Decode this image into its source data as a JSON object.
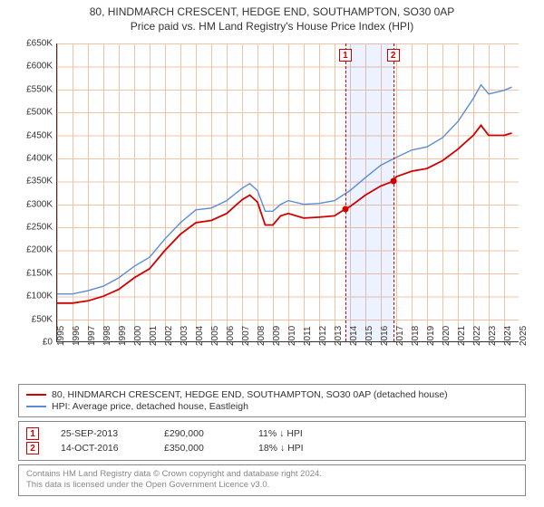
{
  "titles": {
    "line1": "80, HINDMARCH CRESCENT, HEDGE END, SOUTHAMPTON, SO30 0AP",
    "line2": "Price paid vs. HM Land Registry's House Price Index (HPI)"
  },
  "chart": {
    "type": "line",
    "x_domain": [
      1995,
      2025
    ],
    "y_domain": [
      0,
      650000
    ],
    "y_ticks": [
      0,
      50000,
      100000,
      150000,
      200000,
      250000,
      300000,
      350000,
      400000,
      450000,
      500000,
      550000,
      600000,
      650000
    ],
    "y_tick_labels": [
      "£0",
      "£50K",
      "£100K",
      "£150K",
      "£200K",
      "£250K",
      "£300K",
      "£350K",
      "£400K",
      "£450K",
      "£500K",
      "£550K",
      "£600K",
      "£650K"
    ],
    "x_ticks": [
      1995,
      1996,
      1997,
      1998,
      1999,
      2000,
      2001,
      2002,
      2003,
      2004,
      2005,
      2006,
      2007,
      2008,
      2009,
      2010,
      2011,
      2012,
      2013,
      2014,
      2015,
      2016,
      2017,
      2018,
      2019,
      2020,
      2021,
      2022,
      2023,
      2024,
      2025
    ],
    "grid_color": "#f0c2a8",
    "background_color": "#ffffff",
    "highlight_band": {
      "x_start": 2013.7,
      "x_end": 2016.8,
      "color": "rgba(100,150,255,0.12)"
    },
    "series": [
      {
        "name": "price_paid",
        "label": "80, HINDMARCH CRESCENT, HEDGE END, SOUTHAMPTON, SO30 0AP (detached house)",
        "color": "#d00000",
        "width": 1.8,
        "points": [
          [
            1995,
            85000
          ],
          [
            1996,
            85000
          ],
          [
            1997,
            90000
          ],
          [
            1998,
            100000
          ],
          [
            1999,
            115000
          ],
          [
            2000,
            140000
          ],
          [
            2001,
            160000
          ],
          [
            2002,
            200000
          ],
          [
            2003,
            235000
          ],
          [
            2004,
            260000
          ],
          [
            2005,
            265000
          ],
          [
            2006,
            280000
          ],
          [
            2007,
            310000
          ],
          [
            2007.5,
            320000
          ],
          [
            2008,
            305000
          ],
          [
            2008.5,
            255000
          ],
          [
            2009,
            255000
          ],
          [
            2009.5,
            275000
          ],
          [
            2010,
            280000
          ],
          [
            2011,
            270000
          ],
          [
            2012,
            272000
          ],
          [
            2013,
            275000
          ],
          [
            2013.7,
            290000
          ],
          [
            2014,
            295000
          ],
          [
            2015,
            320000
          ],
          [
            2016,
            340000
          ],
          [
            2016.8,
            350000
          ],
          [
            2017,
            360000
          ],
          [
            2018,
            372000
          ],
          [
            2019,
            378000
          ],
          [
            2020,
            395000
          ],
          [
            2021,
            420000
          ],
          [
            2022,
            450000
          ],
          [
            2022.5,
            472000
          ],
          [
            2023,
            450000
          ],
          [
            2024,
            450000
          ],
          [
            2024.5,
            455000
          ]
        ]
      },
      {
        "name": "hpi",
        "label": "HPI: Average price, detached house, Eastleigh",
        "color": "#5b8dd6",
        "width": 1.4,
        "points": [
          [
            1995,
            105000
          ],
          [
            1996,
            105000
          ],
          [
            1997,
            112000
          ],
          [
            1998,
            122000
          ],
          [
            1999,
            140000
          ],
          [
            2000,
            165000
          ],
          [
            2001,
            185000
          ],
          [
            2002,
            225000
          ],
          [
            2003,
            260000
          ],
          [
            2004,
            288000
          ],
          [
            2005,
            292000
          ],
          [
            2006,
            308000
          ],
          [
            2007,
            335000
          ],
          [
            2007.5,
            345000
          ],
          [
            2008,
            330000
          ],
          [
            2008.5,
            285000
          ],
          [
            2009,
            285000
          ],
          [
            2009.5,
            300000
          ],
          [
            2010,
            308000
          ],
          [
            2011,
            300000
          ],
          [
            2012,
            302000
          ],
          [
            2013,
            308000
          ],
          [
            2014,
            330000
          ],
          [
            2015,
            358000
          ],
          [
            2016,
            385000
          ],
          [
            2017,
            402000
          ],
          [
            2018,
            418000
          ],
          [
            2019,
            425000
          ],
          [
            2020,
            445000
          ],
          [
            2021,
            480000
          ],
          [
            2022,
            530000
          ],
          [
            2022.5,
            560000
          ],
          [
            2023,
            540000
          ],
          [
            2024,
            548000
          ],
          [
            2024.5,
            555000
          ]
        ]
      }
    ],
    "transactions": [
      {
        "n": "1",
        "year": 2013.7,
        "price": 290000
      },
      {
        "n": "2",
        "year": 2016.8,
        "price": 350000
      }
    ]
  },
  "legend": {
    "items": [
      {
        "color": "#d00000",
        "label": "80, HINDMARCH CRESCENT, HEDGE END, SOUTHAMPTON, SO30 0AP (detached house)"
      },
      {
        "color": "#5b8dd6",
        "label": "HPI: Average price, detached house, Eastleigh"
      }
    ]
  },
  "transactions_table": [
    {
      "n": "1",
      "date": "25-SEP-2013",
      "price": "£290,000",
      "delta": "11% ↓ HPI"
    },
    {
      "n": "2",
      "date": "14-OCT-2016",
      "price": "£350,000",
      "delta": "18% ↓ HPI"
    }
  ],
  "footer": {
    "line1": "Contains HM Land Registry data © Crown copyright and database right 2024.",
    "line2": "This data is licensed under the Open Government Licence v3.0."
  }
}
